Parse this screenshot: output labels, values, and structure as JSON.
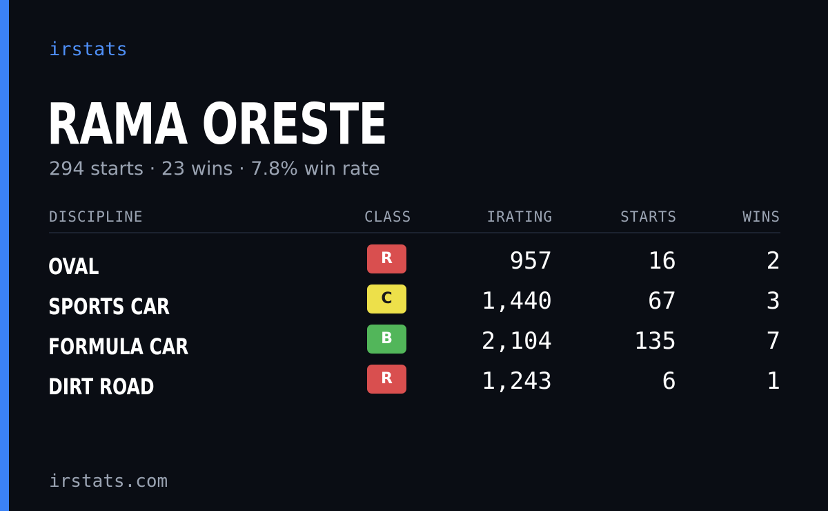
{
  "brand": "irstats",
  "player": {
    "name": "RAMA ORESTE",
    "summary": "294 starts · 23 wins · 7.8% win rate"
  },
  "table": {
    "headers": {
      "discipline": "DISCIPLINE",
      "class": "CLASS",
      "irating": "IRATING",
      "starts": "STARTS",
      "wins": "WINS"
    },
    "rows": [
      {
        "discipline": "OVAL",
        "class": "R",
        "class_bg": "#d94f4f",
        "class_fg": "#ffffff",
        "irating": "957",
        "starts": "16",
        "wins": "2"
      },
      {
        "discipline": "SPORTS CAR",
        "class": "C",
        "class_bg": "#ede04a",
        "class_fg": "#1a1a1a",
        "irating": "1,440",
        "starts": "67",
        "wins": "3"
      },
      {
        "discipline": "FORMULA CAR",
        "class": "B",
        "class_bg": "#52b65a",
        "class_fg": "#ffffff",
        "irating": "2,104",
        "starts": "135",
        "wins": "7"
      },
      {
        "discipline": "DIRT ROAD",
        "class": "R",
        "class_bg": "#d94f4f",
        "class_fg": "#ffffff",
        "irating": "1,243",
        "starts": "6",
        "wins": "1"
      }
    ]
  },
  "footer": "irstats.com",
  "colors": {
    "background": "#0a0d14",
    "accent": "#3b82f6",
    "brand_text": "#4f8ff7",
    "muted_text": "#9aa3b2"
  }
}
